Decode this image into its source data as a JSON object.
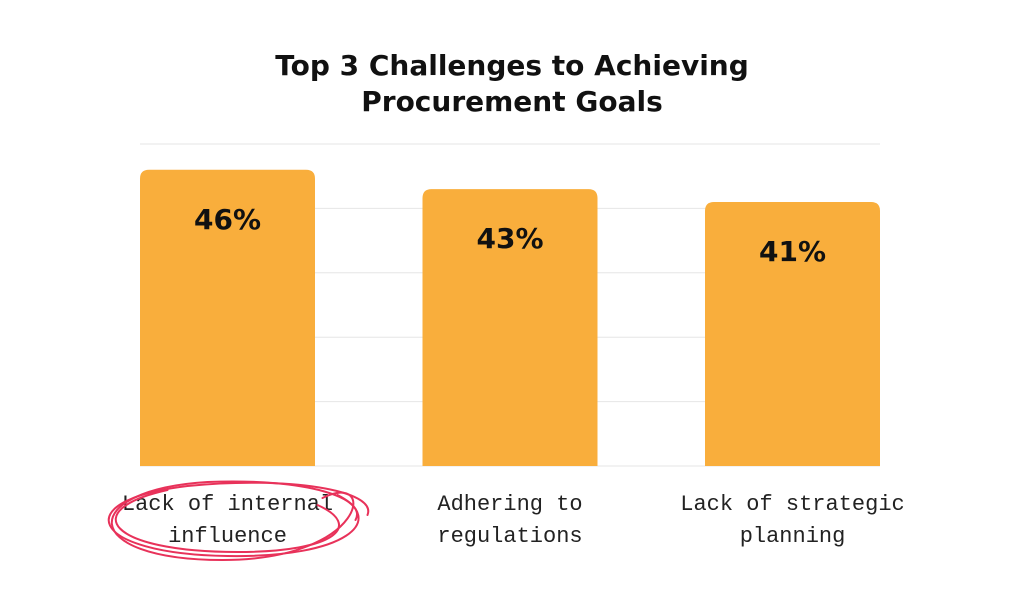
{
  "chart_data": {
    "type": "bar",
    "title_lines": [
      "Top 3 Challenges to Achieving",
      "Procurement Goals"
    ],
    "categories": [
      [
        "Lack of internal",
        "influence"
      ],
      [
        "Adhering to",
        "regulations"
      ],
      [
        "Lack of strategic",
        "planning"
      ]
    ],
    "values": [
      46,
      43,
      41
    ],
    "value_labels": [
      "46%",
      "43%",
      "41%"
    ],
    "ylim": [
      0,
      50
    ],
    "grid": true,
    "highlighted_category_index": 0,
    "colors": {
      "bar": "#F9AE3C",
      "grid": "#E6E6E6",
      "highlight": "#E8325A"
    }
  }
}
